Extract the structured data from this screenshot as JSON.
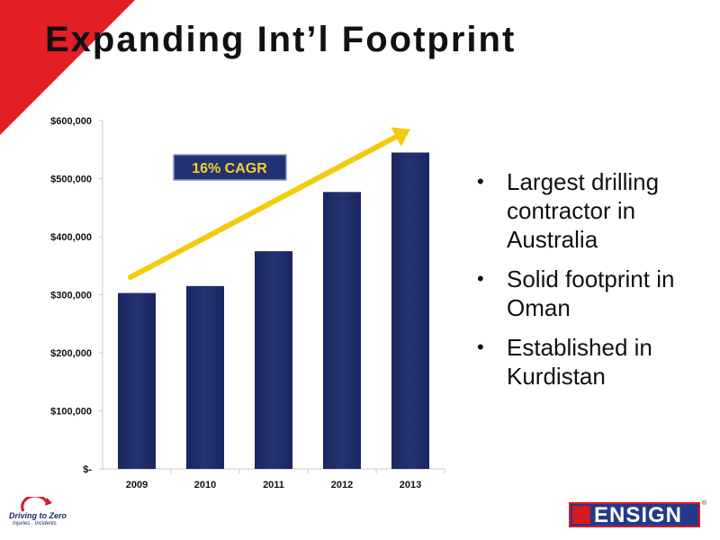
{
  "slide": {
    "title": "Expanding Int’l Footprint",
    "bullets": [
      "Largest drilling contractor in Australia",
      "Solid footprint in Oman",
      "Established in Kurdistan"
    ]
  },
  "colors": {
    "accent_red": "#e31e24",
    "bar_fill": "#233272",
    "arrow": "#f2cc0c",
    "cagr_box": "#233272",
    "cagr_text": "#f5d12a"
  },
  "chart_data": {
    "type": "bar",
    "categories": [
      "2009",
      "2010",
      "2011",
      "2012",
      "2013"
    ],
    "values": [
      303000,
      315000,
      375000,
      477000,
      545000
    ],
    "ylim": [
      0,
      600000
    ],
    "yticks": [
      0,
      100000,
      200000,
      300000,
      400000,
      500000,
      600000
    ],
    "ytick_labels": [
      "$-",
      "$100,000",
      "$200,000",
      "$300,000",
      "$400,000",
      "$500,000",
      "$600,000"
    ],
    "annotation": "16% CAGR",
    "grid": false,
    "legend": "none"
  },
  "footer": {
    "left_logo_text": "Driving to Zero",
    "left_logo_subtext": "Injuries · Incidents",
    "right_logo_text": "ENSIGN",
    "right_logo_mark": "®"
  }
}
